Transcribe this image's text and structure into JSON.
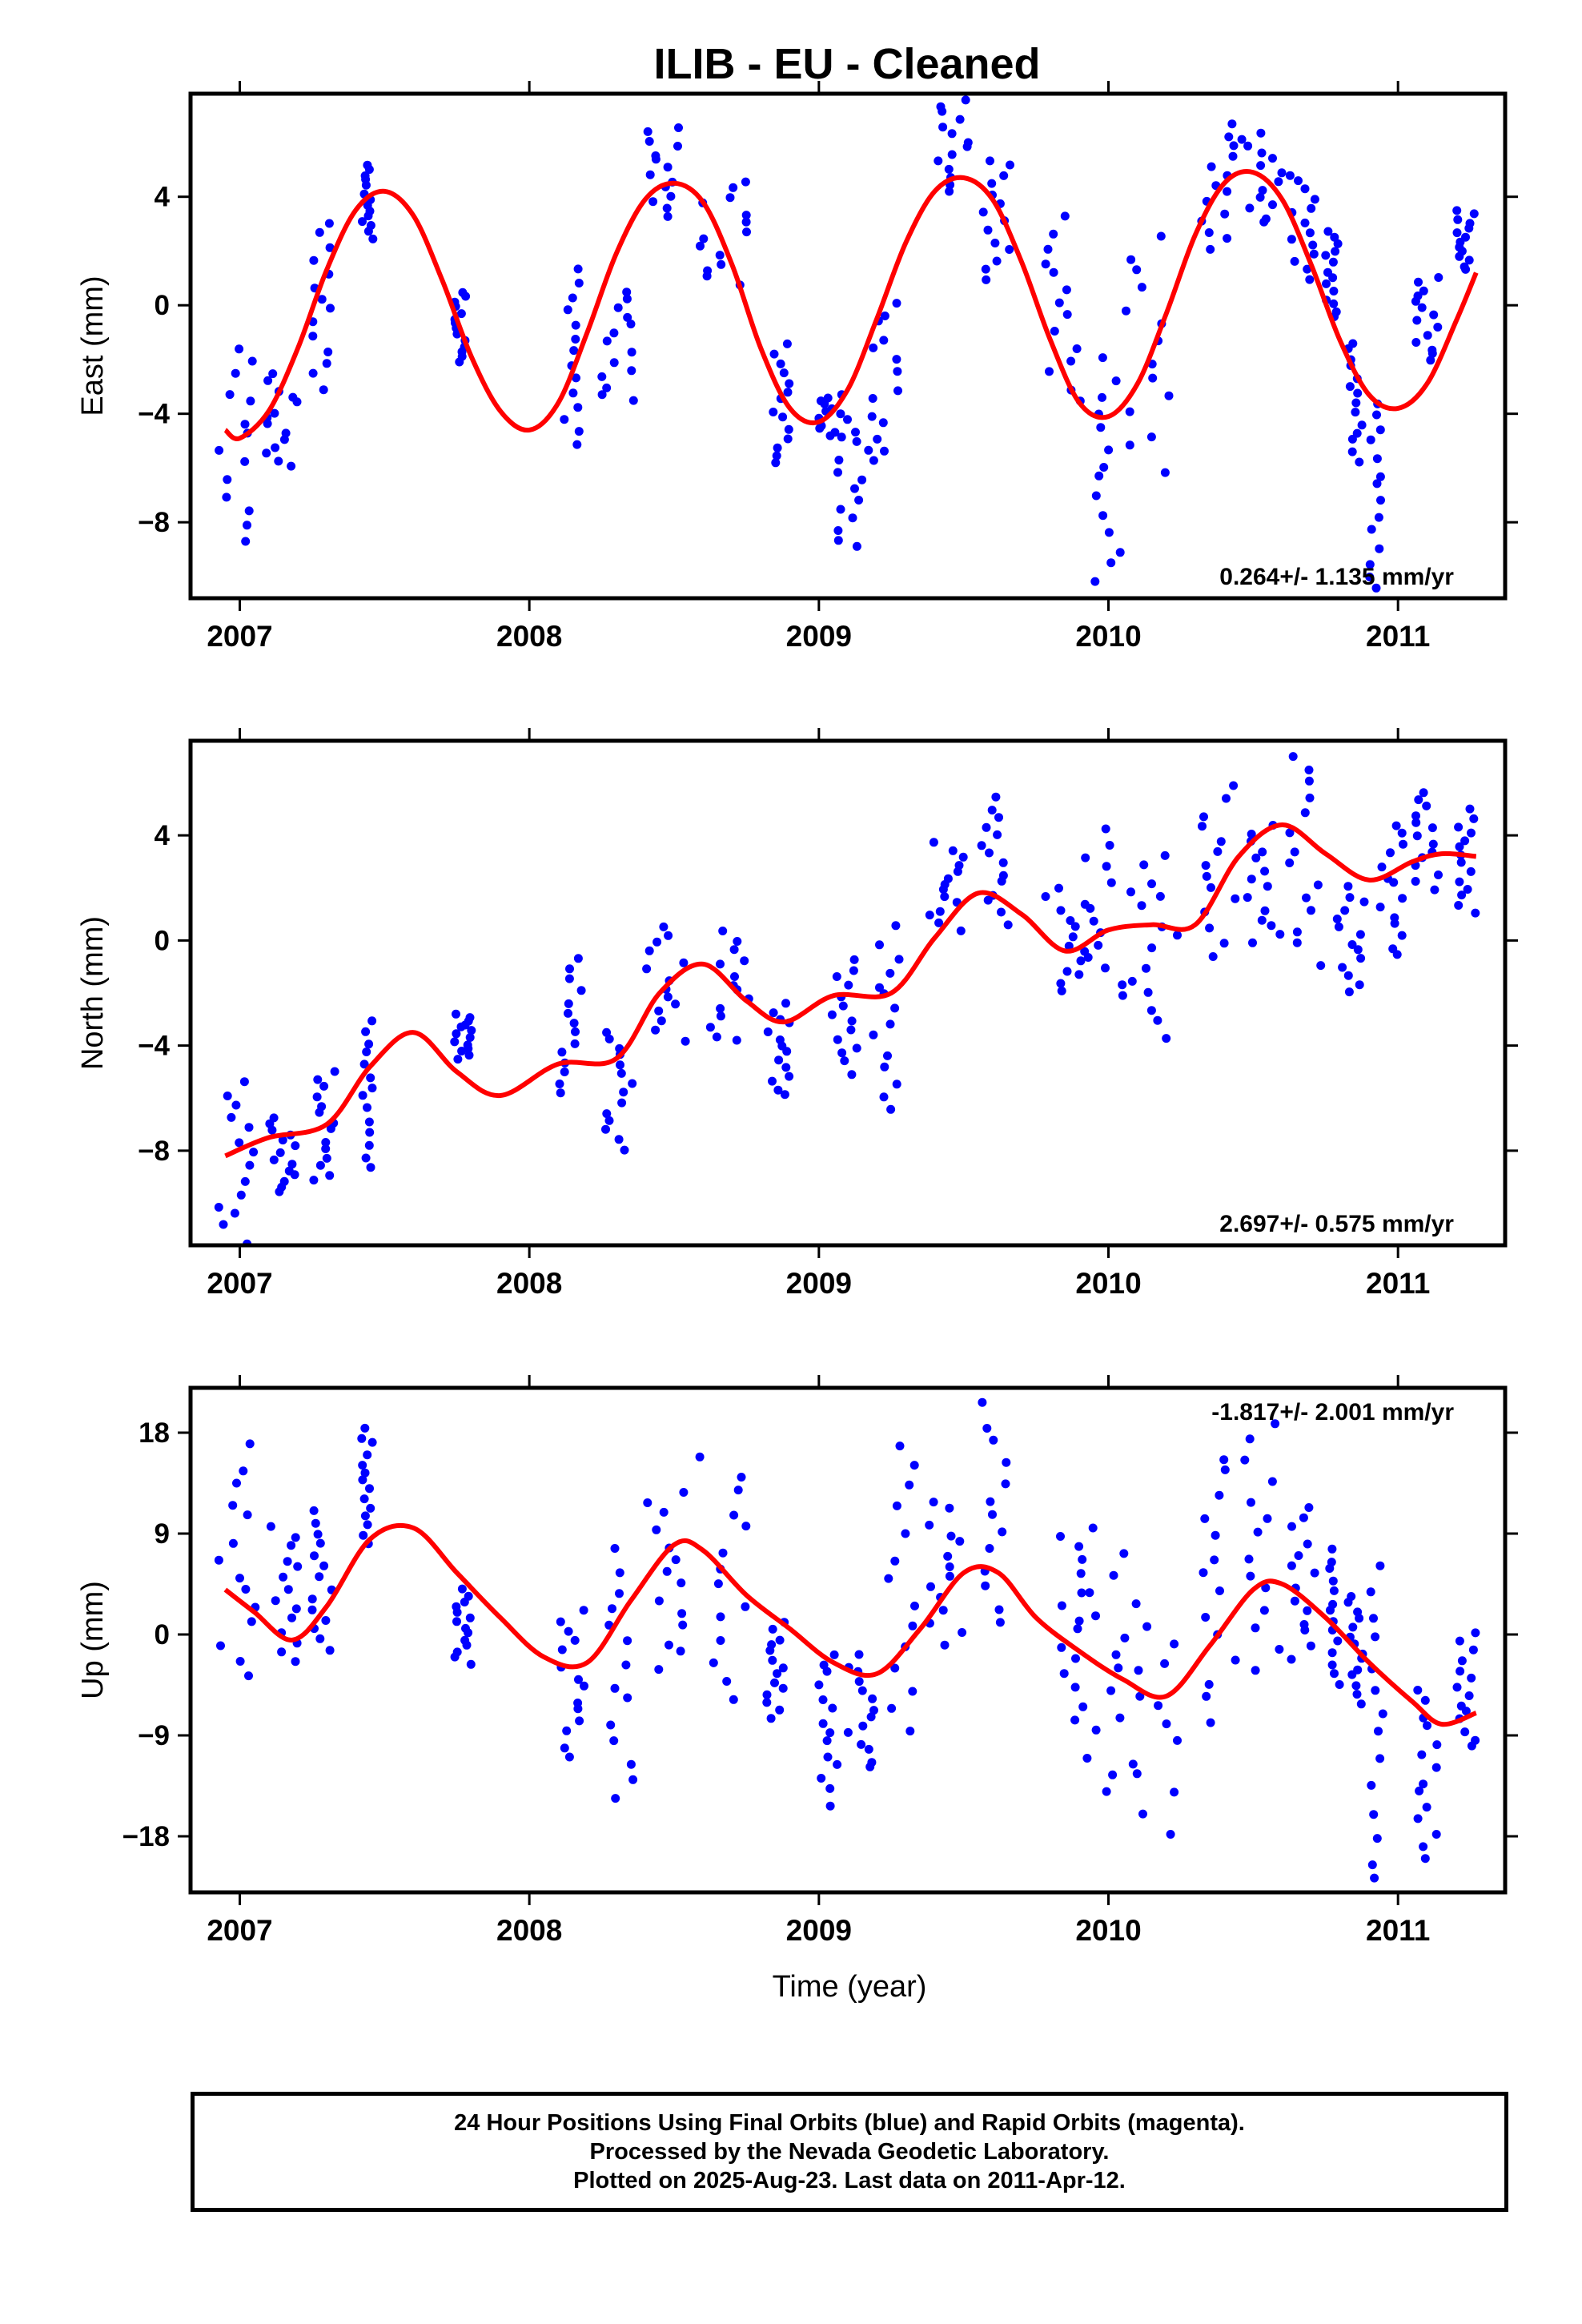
{
  "title": "ILIB  - EU - Cleaned",
  "x_axis_label": "Time (year)",
  "footer": {
    "line1": "24 Hour Positions Using Final Orbits (blue) and Rapid Orbits (magenta).",
    "line2": "Processed by the Nevada Geodetic Laboratory.",
    "line3": "Plotted on 2025-Aug-23. Last data on 2011-Apr-12."
  },
  "colors": {
    "data": "#0000ff",
    "model": "#ff0000",
    "frame": "#000000"
  },
  "chart_data": [
    {
      "type": "scatter",
      "ylabel": "East (mm)",
      "xlim": [
        2006.83,
        2011.37
      ],
      "ylim": [
        -10.8,
        7.8
      ],
      "yticks": [
        -8,
        -4,
        0,
        4
      ],
      "xticks": [
        2007,
        2008,
        2009,
        2010,
        2011
      ],
      "rate_label": "0.264+/- 1.135 mm/yr",
      "rate_position": "bottom-right",
      "model_line": {
        "x": [
          2006.95,
          2007.0,
          2007.1,
          2007.2,
          2007.3,
          2007.4,
          2007.5,
          2007.6,
          2007.7,
          2007.8,
          2007.9,
          2008.0,
          2008.1,
          2008.2,
          2008.3,
          2008.4,
          2008.5,
          2008.6,
          2008.7,
          2008.8,
          2008.9,
          2009.0,
          2009.1,
          2009.2,
          2009.3,
          2009.4,
          2009.5,
          2009.6,
          2009.7,
          2009.8,
          2009.9,
          2010.0,
          2010.1,
          2010.2,
          2010.3,
          2010.4,
          2010.5,
          2010.6,
          2010.7,
          2010.8,
          2010.9,
          2011.0,
          2011.1,
          2011.2,
          2011.27
        ],
        "y": [
          -4.6,
          -4.9,
          -3.9,
          -1.6,
          1.3,
          3.5,
          4.2,
          3.3,
          0.9,
          -1.9,
          -3.9,
          -4.6,
          -3.6,
          -1.0,
          1.9,
          3.9,
          4.5,
          3.8,
          1.5,
          -1.6,
          -3.8,
          -4.3,
          -3.1,
          -0.5,
          2.3,
          4.2,
          4.7,
          3.9,
          1.6,
          -1.3,
          -3.6,
          -4.1,
          -2.9,
          -0.3,
          2.6,
          4.5,
          4.9,
          3.9,
          1.5,
          -1.3,
          -3.3,
          -3.8,
          -2.9,
          -0.6,
          1.2
        ]
      },
      "clusters": [
        {
          "x": [
            2006.92,
            2007.06
          ],
          "y": [
            -8.6,
            -1.5
          ]
        },
        {
          "x": [
            2007.08,
            2007.2
          ],
          "y": [
            -6.0,
            -2.6
          ]
        },
        {
          "x": [
            2007.25,
            2007.34
          ],
          "y": [
            -3.0,
            3.0
          ]
        },
        {
          "x": [
            2007.42,
            2007.46
          ],
          "y": [
            2.5,
            5.2
          ]
        },
        {
          "x": [
            2007.74,
            2007.78
          ],
          "y": [
            -2.1,
            0.5
          ]
        },
        {
          "x": [
            2008.1,
            2008.18
          ],
          "y": [
            -5.1,
            1.2
          ]
        },
        {
          "x": [
            2008.25,
            2008.36
          ],
          "y": [
            -3.6,
            0.5
          ]
        },
        {
          "x": [
            2008.4,
            2008.52
          ],
          "y": [
            3.3,
            6.6
          ]
        },
        {
          "x": [
            2008.58,
            2008.76
          ],
          "y": [
            0.7,
            4.6
          ]
        },
        {
          "x": [
            2008.82,
            2008.9
          ],
          "y": [
            -5.9,
            -1.4
          ]
        },
        {
          "x": [
            2009.0,
            2009.08
          ],
          "y": [
            -4.9,
            -3.3
          ]
        },
        {
          "x": [
            2009.06,
            2009.18
          ],
          "y": [
            -9.0,
            -4.2
          ]
        },
        {
          "x": [
            2009.18,
            2009.28
          ],
          "y": [
            -5.8,
            0.2
          ]
        },
        {
          "x": [
            2009.4,
            2009.52
          ],
          "y": [
            4.2,
            7.6
          ]
        },
        {
          "x": [
            2009.56,
            2009.66
          ],
          "y": [
            1.0,
            5.4
          ]
        },
        {
          "x": [
            2009.78,
            2009.92
          ],
          "y": [
            -3.6,
            3.2
          ]
        },
        {
          "x": [
            2009.95,
            2010.06
          ],
          "y": [
            -10.3,
            -2.0
          ]
        },
        {
          "x": [
            2010.06,
            2010.22
          ],
          "y": [
            -6.0,
            2.4
          ]
        },
        {
          "x": [
            2010.32,
            2010.44
          ],
          "y": [
            2.0,
            6.6
          ]
        },
        {
          "x": [
            2010.46,
            2010.6
          ],
          "y": [
            3.0,
            6.4
          ]
        },
        {
          "x": [
            2010.62,
            2010.72
          ],
          "y": [
            1.0,
            4.8
          ]
        },
        {
          "x": [
            2010.75,
            2010.8
          ],
          "y": [
            -0.5,
            2.8
          ]
        },
        {
          "x": [
            2010.82,
            2010.88
          ],
          "y": [
            -5.7,
            -1.3
          ]
        },
        {
          "x": [
            2010.9,
            2010.94
          ],
          "y": [
            -10.5,
            -3.5
          ]
        },
        {
          "x": [
            2011.06,
            2011.14
          ],
          "y": [
            -2.1,
            1.1
          ]
        },
        {
          "x": [
            2011.2,
            2011.27
          ],
          "y": [
            1.3,
            3.5
          ]
        }
      ]
    },
    {
      "type": "scatter",
      "ylabel": "North (mm)",
      "xlim": [
        2006.83,
        2011.37
      ],
      "ylim": [
        -11.6,
        7.6
      ],
      "yticks": [
        -8,
        -4,
        0,
        4
      ],
      "xticks": [
        2007,
        2008,
        2009,
        2010,
        2011
      ],
      "rate_label": "2.697+/- 0.575 mm/yr",
      "rate_position": "bottom-right",
      "model_line": {
        "x": [
          2006.95,
          2007.1,
          2007.3,
          2007.45,
          2007.6,
          2007.75,
          2007.9,
          2008.1,
          2008.3,
          2008.45,
          2008.6,
          2008.75,
          2008.88,
          2009.05,
          2009.25,
          2009.4,
          2009.55,
          2009.7,
          2009.85,
          2010.0,
          2010.15,
          2010.3,
          2010.45,
          2010.6,
          2010.75,
          2010.9,
          2011.05,
          2011.15,
          2011.27
        ],
        "y": [
          -8.2,
          -7.5,
          -7.0,
          -4.8,
          -3.5,
          -5.0,
          -5.9,
          -4.7,
          -4.5,
          -2.0,
          -0.9,
          -2.3,
          -3.1,
          -2.1,
          -2.0,
          0.1,
          1.8,
          1.0,
          -0.4,
          0.4,
          0.6,
          0.6,
          3.2,
          4.4,
          3.3,
          2.3,
          3.0,
          3.3,
          3.2
        ]
      },
      "clusters": [
        {
          "x": [
            2006.92,
            2007.06
          ],
          "y": [
            -11.4,
            -5.4
          ]
        },
        {
          "x": [
            2007.1,
            2007.2
          ],
          "y": [
            -9.6,
            -6.8
          ]
        },
        {
          "x": [
            2007.25,
            2007.34
          ],
          "y": [
            -9.2,
            -5.0
          ]
        },
        {
          "x": [
            2007.42,
            2007.46
          ],
          "y": [
            -8.6,
            -3.0
          ]
        },
        {
          "x": [
            2007.74,
            2007.8
          ],
          "y": [
            -4.5,
            -2.8
          ]
        },
        {
          "x": [
            2008.1,
            2008.18
          ],
          "y": [
            -5.8,
            -0.8
          ]
        },
        {
          "x": [
            2008.26,
            2008.36
          ],
          "y": [
            -7.9,
            -3.4
          ]
        },
        {
          "x": [
            2008.4,
            2008.54
          ],
          "y": [
            -3.8,
            0.6
          ]
        },
        {
          "x": [
            2008.58,
            2008.76
          ],
          "y": [
            -3.9,
            0.3
          ]
        },
        {
          "x": [
            2008.82,
            2008.9
          ],
          "y": [
            -5.9,
            -2.4
          ]
        },
        {
          "x": [
            2009.04,
            2009.14
          ],
          "y": [
            -5.0,
            -0.8
          ]
        },
        {
          "x": [
            2009.18,
            2009.28
          ],
          "y": [
            -6.4,
            0.5
          ]
        },
        {
          "x": [
            2009.38,
            2009.5
          ],
          "y": [
            0.4,
            3.7
          ]
        },
        {
          "x": [
            2009.56,
            2009.66
          ],
          "y": [
            0.7,
            5.4
          ]
        },
        {
          "x": [
            2009.78,
            2009.92
          ],
          "y": [
            -2.0,
            2.0
          ]
        },
        {
          "x": [
            2009.92,
            2010.08
          ],
          "y": [
            -2.1,
            4.1
          ]
        },
        {
          "x": [
            2010.08,
            2010.24
          ],
          "y": [
            -3.6,
            3.3
          ]
        },
        {
          "x": [
            2010.32,
            2010.44
          ],
          "y": [
            -0.5,
            5.8
          ]
        },
        {
          "x": [
            2010.46,
            2010.6
          ],
          "y": [
            -0.2,
            4.5
          ]
        },
        {
          "x": [
            2010.62,
            2010.74
          ],
          "y": [
            -0.8,
            7.1
          ]
        },
        {
          "x": [
            2010.78,
            2010.9
          ],
          "y": [
            -1.9,
            2.0
          ]
        },
        {
          "x": [
            2010.92,
            2011.02
          ],
          "y": [
            -0.6,
            4.4
          ]
        },
        {
          "x": [
            2011.06,
            2011.14
          ],
          "y": [
            2.0,
            5.6
          ]
        },
        {
          "x": [
            2011.2,
            2011.27
          ],
          "y": [
            1.1,
            5.0
          ]
        }
      ]
    },
    {
      "type": "scatter",
      "ylabel": "Up (mm)",
      "xlim": [
        2006.83,
        2011.37
      ],
      "ylim": [
        -23.0,
        22.0
      ],
      "yticks": [
        -18,
        -9,
        0,
        9,
        18
      ],
      "xticks": [
        2007,
        2008,
        2009,
        2010,
        2011
      ],
      "rate_label": "-1.817+/- 2.001 mm/yr",
      "rate_position": "top-right",
      "model_line": {
        "x": [
          2006.95,
          2007.05,
          2007.18,
          2007.3,
          2007.45,
          2007.6,
          2007.75,
          2007.9,
          2008.05,
          2008.2,
          2008.35,
          2008.5,
          2008.6,
          2008.75,
          2008.9,
          2009.05,
          2009.2,
          2009.35,
          2009.5,
          2009.62,
          2009.75,
          2009.9,
          2010.05,
          2010.2,
          2010.35,
          2010.5,
          2010.6,
          2010.75,
          2010.9,
          2011.05,
          2011.15,
          2011.27
        ],
        "y": [
          4.0,
          2.0,
          -0.5,
          2.5,
          8.5,
          9.5,
          5.5,
          1.5,
          -2.0,
          -2.5,
          3.0,
          8.0,
          7.5,
          3.5,
          0.5,
          -2.5,
          -3.5,
          0.5,
          5.5,
          5.5,
          1.5,
          -1.5,
          -4.0,
          -5.5,
          -1.0,
          4.0,
          4.5,
          1.5,
          -2.5,
          -6.0,
          -8.0,
          -7.0
        ]
      },
      "clusters": [
        {
          "x": [
            2006.92,
            2007.06
          ],
          "y": [
            -4.0,
            16.5
          ]
        },
        {
          "x": [
            2007.1,
            2007.2
          ],
          "y": [
            -2.5,
            9.5
          ]
        },
        {
          "x": [
            2007.25,
            2007.34
          ],
          "y": [
            -1.5,
            11.0
          ]
        },
        {
          "x": [
            2007.42,
            2007.46
          ],
          "y": [
            8.0,
            18.5
          ]
        },
        {
          "x": [
            2007.74,
            2007.8
          ],
          "y": [
            -2.5,
            4.0
          ]
        },
        {
          "x": [
            2008.1,
            2008.2
          ],
          "y": [
            -11.0,
            2.5
          ]
        },
        {
          "x": [
            2008.26,
            2008.36
          ],
          "y": [
            -14.5,
            7.5
          ]
        },
        {
          "x": [
            2008.4,
            2008.54
          ],
          "y": [
            -3.0,
            13.0
          ]
        },
        {
          "x": [
            2008.58,
            2008.76
          ],
          "y": [
            -5.5,
            16.0
          ]
        },
        {
          "x": [
            2008.82,
            2008.9
          ],
          "y": [
            -7.5,
            1.0
          ]
        },
        {
          "x": [
            2009.0,
            2009.08
          ],
          "y": [
            -15.0,
            -1.5
          ]
        },
        {
          "x": [
            2009.1,
            2009.2
          ],
          "y": [
            -12.0,
            -2.0
          ]
        },
        {
          "x": [
            2009.24,
            2009.34
          ],
          "y": [
            -9.0,
            17.0
          ]
        },
        {
          "x": [
            2009.38,
            2009.5
          ],
          "y": [
            -1.0,
            12.0
          ]
        },
        {
          "x": [
            2009.56,
            2009.66
          ],
          "y": [
            1.0,
            22.0
          ]
        },
        {
          "x": [
            2009.78,
            2009.92
          ],
          "y": [
            -7.5,
            9.0
          ]
        },
        {
          "x": [
            2009.92,
            2010.08
          ],
          "y": [
            -14.0,
            9.0
          ]
        },
        {
          "x": [
            2010.08,
            2010.24
          ],
          "y": [
            -17.5,
            2.5
          ]
        },
        {
          "x": [
            2010.32,
            2010.44
          ],
          "y": [
            -7.5,
            16.0
          ]
        },
        {
          "x": [
            2010.46,
            2010.6
          ],
          "y": [
            -3.0,
            19.0
          ]
        },
        {
          "x": [
            2010.62,
            2010.72
          ],
          "y": [
            -2.0,
            11.5
          ]
        },
        {
          "x": [
            2010.76,
            2010.8
          ],
          "y": [
            -4.5,
            7.5
          ]
        },
        {
          "x": [
            2010.82,
            2010.88
          ],
          "y": [
            -6.0,
            3.5
          ]
        },
        {
          "x": [
            2010.9,
            2010.96
          ],
          "y": [
            -22.0,
            5.5
          ]
        },
        {
          "x": [
            2011.06,
            2011.14
          ],
          "y": [
            -20.0,
            -5.0
          ]
        },
        {
          "x": [
            2011.2,
            2011.27
          ],
          "y": [
            -10.0,
            0.0
          ]
        }
      ]
    }
  ]
}
